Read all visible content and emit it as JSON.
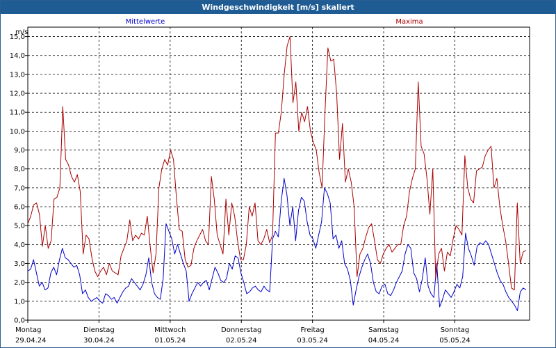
{
  "window": {
    "title": "Windgeschwindigkeit [m/s] skaliert"
  },
  "chart_data": {
    "type": "line",
    "title": "Windgeschwindigkeit [m/s] skaliert",
    "ylabel": "m/s",
    "xlabel": "",
    "ylim": [
      0,
      15.5
    ],
    "xlim": [
      0,
      7.05
    ],
    "grid": true,
    "y_ticks": [
      "0,0",
      "1,0",
      "2,0",
      "3,0",
      "4,0",
      "5,0",
      "6,0",
      "7,0",
      "8,0",
      "9,0",
      "10,0",
      "11,0",
      "12,0",
      "13,0",
      "14,0",
      "15,0"
    ],
    "x_ticks": [
      {
        "day": "Montag",
        "date": "29.04.24"
      },
      {
        "day": "Dienstag",
        "date": "30.04.24"
      },
      {
        "day": "Mittwoch",
        "date": "01.05.24"
      },
      {
        "day": "Donnerstag",
        "date": "02.05.24"
      },
      {
        "day": "Freitag",
        "date": "03.05.24"
      },
      {
        "day": "Samstag",
        "date": "04.05.24"
      },
      {
        "day": "Sonntag",
        "date": "05.05.24"
      }
    ],
    "series": [
      {
        "name": "Mittelwerte",
        "color": "#0000cc",
        "values": [
          2.6,
          2.7,
          3.2,
          2.5,
          1.8,
          2.0,
          1.6,
          1.7,
          2.5,
          2.8,
          2.4,
          3.2,
          3.8,
          3.3,
          3.2,
          3.0,
          2.8,
          2.9,
          2.4,
          1.4,
          1.6,
          1.2,
          1.0,
          1.1,
          1.2,
          1.0,
          0.9,
          1.4,
          1.3,
          1.1,
          1.2,
          0.9,
          1.2,
          1.5,
          1.7,
          1.8,
          2.2,
          2.0,
          1.8,
          1.6,
          1.9,
          2.4,
          3.3,
          2.0,
          1.4,
          1.2,
          1.1,
          2.2,
          5.1,
          4.7,
          4.3,
          3.5,
          4.0,
          3.5,
          3.0,
          2.6,
          1.0,
          1.4,
          1.7,
          2.0,
          1.8,
          2.0,
          2.1,
          1.6,
          2.2,
          2.8,
          2.5,
          2.1,
          2.0,
          2.2,
          3.0,
          2.7,
          3.4,
          3.3,
          2.5,
          2.0,
          1.4,
          1.5,
          1.7,
          1.8,
          1.6,
          1.5,
          1.8,
          1.6,
          1.5,
          4.3,
          4.7,
          4.4,
          6.3,
          7.5,
          6.6,
          5.0,
          6.0,
          4.2,
          5.8,
          6.5,
          6.3,
          5.2,
          4.5,
          4.3,
          3.8,
          4.5,
          5.2,
          7.0,
          6.7,
          6.2,
          4.3,
          4.5,
          3.8,
          4.2,
          3.0,
          2.7,
          2.1,
          0.8,
          1.6,
          2.3,
          2.8,
          3.2,
          3.5,
          3.0,
          2.0,
          1.5,
          1.4,
          1.8,
          1.9,
          1.4,
          1.3,
          1.6,
          2.0,
          2.3,
          2.6,
          3.5,
          4.0,
          3.8,
          2.5,
          2.2,
          1.5,
          2.2,
          3.3,
          1.8,
          1.4,
          1.2,
          3.0,
          0.7,
          1.1,
          1.6,
          1.4,
          1.2,
          1.5,
          1.9,
          1.7,
          2.3,
          4.6,
          3.8,
          3.4,
          2.9,
          3.9,
          4.1,
          4.0,
          4.2,
          4.0,
          3.5,
          3.0,
          2.5,
          2.1,
          1.9,
          1.5,
          1.2,
          1.0,
          0.8,
          0.5,
          1.5,
          1.7,
          1.6
        ]
      },
      {
        "name": "Maxima",
        "color": "#aa0000",
        "values": [
          5.1,
          5.5,
          6.1,
          6.2,
          5.6,
          3.9,
          5.0,
          3.8,
          4.2,
          6.4,
          6.5,
          7.0,
          11.3,
          8.5,
          8.2,
          7.6,
          7.3,
          7.7,
          6.8,
          3.5,
          4.5,
          4.3,
          3.3,
          2.6,
          2.3,
          2.6,
          2.8,
          2.4,
          3.0,
          2.6,
          2.5,
          2.4,
          3.4,
          3.8,
          4.2,
          5.3,
          4.2,
          4.5,
          4.3,
          4.6,
          4.5,
          5.5,
          3.9,
          2.5,
          3.5,
          7.0,
          8.0,
          8.5,
          8.2,
          9.0,
          8.5,
          6.5,
          4.8,
          4.7,
          3.2,
          2.8,
          2.9,
          3.8,
          4.2,
          4.5,
          4.8,
          4.2,
          4.0,
          7.6,
          6.4,
          4.5,
          4.0,
          3.5,
          6.4,
          4.5,
          6.2,
          5.5,
          4.2,
          3.2,
          3.2,
          4.0,
          6.0,
          5.5,
          6.2,
          4.2,
          4.0,
          4.3,
          4.8,
          4.1,
          4.5,
          9.9,
          9.9,
          11.0,
          13.0,
          14.5,
          15.0,
          11.5,
          12.6,
          10.0,
          11.0,
          10.5,
          11.3,
          10.0,
          9.4,
          9.0,
          7.8,
          7.0,
          11.0,
          14.4,
          13.7,
          13.8,
          12.0,
          8.5,
          10.4,
          7.3,
          8.0,
          7.3,
          6.0,
          2.3,
          3.5,
          3.8,
          4.4,
          4.9,
          5.1,
          4.2,
          3.2,
          3.0,
          3.5,
          3.8,
          4.0,
          3.6,
          3.8,
          4.0,
          4.0,
          5.0,
          5.5,
          6.8,
          7.5,
          8.0,
          12.6,
          9.2,
          8.8,
          7.5,
          5.6,
          8.0,
          2.2,
          3.5,
          3.8,
          2.6,
          3.6,
          3.4,
          4.3,
          5.0,
          4.8,
          4.5,
          8.7,
          7.0,
          6.4,
          6.2,
          7.9,
          8.0,
          8.1,
          8.7,
          9.0,
          9.2,
          7.0,
          7.5,
          6.0,
          5.0,
          4.2,
          3.0,
          1.7,
          1.6,
          6.2,
          3.0,
          3.6,
          3.7
        ]
      }
    ]
  }
}
